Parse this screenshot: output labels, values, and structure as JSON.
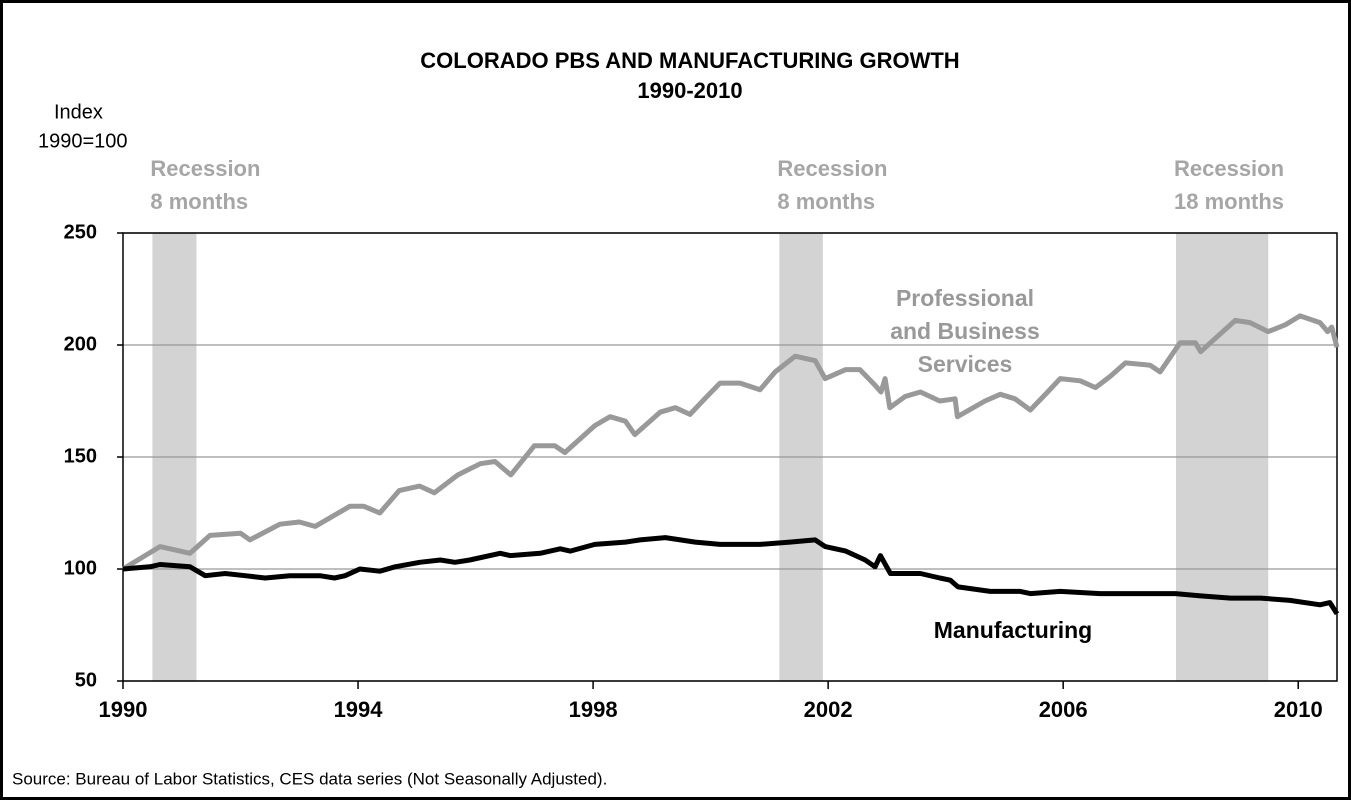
{
  "chart_data": {
    "type": "line",
    "title": "COLORADO PBS AND MANUFACTURING GROWTH",
    "subtitle": "1990-2010",
    "y_label": [
      "Index",
      "1990=100"
    ],
    "source": "Source:  Bureau of Labor Statistics, CES data series (Not Seasonally Adjusted).",
    "xlim": [
      1990,
      2010.66
    ],
    "xticks": [
      1990,
      1994,
      1998,
      2002,
      2006,
      2010
    ],
    "ylim": [
      50,
      250
    ],
    "yticks": [
      50,
      100,
      150,
      200,
      250
    ],
    "grid": true,
    "recessions": [
      {
        "start": 1990.5,
        "end": 1991.25,
        "label": [
          "Recession",
          "8 months"
        ]
      },
      {
        "start": 2001.17,
        "end": 2001.91,
        "label": [
          "Recession",
          "8 months"
        ]
      },
      {
        "start": 2007.92,
        "end": 2009.49,
        "label": [
          "Recession",
          "18 months"
        ]
      }
    ],
    "series": [
      {
        "name": "Professional and Business Services",
        "color": "#999999",
        "x": [
          1990,
          1990.63,
          1991.14,
          1991.48,
          1992,
          1992.16,
          1992.67,
          1993,
          1993.27,
          1993.6,
          1993.86,
          1994.1,
          1994.37,
          1994.7,
          1995.05,
          1995.3,
          1995.7,
          1996.08,
          1996.33,
          1996.6,
          1997,
          1997.35,
          1997.52,
          1998.03,
          1998.29,
          1998.55,
          1998.71,
          1999.14,
          1999.4,
          1999.65,
          1999.9,
          2000.16,
          2000.5,
          2000.84,
          2001.1,
          2001.44,
          2001.78,
          2001.95,
          2002.3,
          2002.54,
          2002.8,
          2002.9,
          2002.97,
          2003.05,
          2003.31,
          2003.57,
          2003.9,
          2004.16,
          2004.2,
          2004.67,
          2004.93,
          2005.18,
          2005.44,
          2005.7,
          2005.95,
          2006.29,
          2006.55,
          2006.8,
          2007.06,
          2007.48,
          2007.65,
          2007.99,
          2008.25,
          2008.34,
          2008.59,
          2008.93,
          2009.18,
          2009.49,
          2009.78,
          2010.03,
          2010.37,
          2010.5,
          2010.57,
          2010.66
        ],
        "values": [
          100,
          110,
          107,
          115,
          116,
          113,
          120,
          121,
          119,
          124,
          128,
          128,
          125,
          135,
          137,
          134,
          142,
          147,
          148,
          142,
          155,
          155,
          152,
          164,
          168,
          166,
          160,
          170,
          172,
          169,
          176,
          183,
          183,
          180,
          188,
          195,
          193,
          185,
          189,
          189,
          182,
          179,
          185,
          172,
          177,
          179,
          175,
          176,
          168,
          175,
          178,
          176,
          171,
          178,
          185,
          184,
          181,
          186,
          192,
          191,
          188,
          201,
          201,
          197,
          203,
          211,
          210,
          206,
          209,
          213,
          210,
          206,
          208,
          199
        ]
      },
      {
        "name": "Manufacturing",
        "color": "#000000",
        "x": [
          1990,
          1990.46,
          1990.63,
          1991.14,
          1991.4,
          1991.74,
          1992.08,
          1992.42,
          1992.84,
          1993.35,
          1993.6,
          1993.78,
          1994.03,
          1994.37,
          1994.63,
          1995.05,
          1995.4,
          1995.65,
          1995.9,
          1996.42,
          1996.59,
          1997.1,
          1997.44,
          1997.61,
          1998.03,
          1998.55,
          1998.8,
          1999.23,
          1999.74,
          2000.16,
          2000.84,
          2001.35,
          2001.78,
          2001.95,
          2002.3,
          2002.63,
          2002.8,
          2002.89,
          2003.06,
          2003.57,
          2003.9,
          2004.08,
          2004.21,
          2004.76,
          2005.27,
          2005.44,
          2005.95,
          2006.63,
          2007.31,
          2007.91,
          2008.34,
          2008.85,
          2009.36,
          2009.86,
          2010.37,
          2010.54,
          2010.66
        ],
        "values": [
          100,
          101,
          102,
          101,
          97,
          98,
          97,
          96,
          97,
          97,
          96,
          97,
          100,
          99,
          101,
          103,
          104,
          103,
          104,
          107,
          106,
          107,
          109,
          108,
          111,
          112,
          113,
          114,
          112,
          111,
          111,
          112,
          113,
          110,
          108,
          104,
          101,
          106,
          98,
          98,
          96,
          95,
          92,
          90,
          90,
          89,
          90,
          89,
          89,
          89,
          88,
          87,
          87,
          86,
          84,
          85,
          80
        ]
      }
    ]
  }
}
